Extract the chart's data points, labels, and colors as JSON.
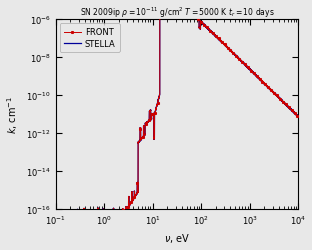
{
  "title": "SN 2009ip $\\rho = 10^{-11}$ g/cm$^2$ $T = 5000$ K $t_r = 10$ days",
  "xlabel": "$\\nu$, eV",
  "ylabel": "$k$, cm$^{-1}$",
  "xlim": [
    0.1,
    10000.0
  ],
  "ylim": [
    1e-16,
    1e-06
  ],
  "front_color": "#cc0000",
  "stella_color": "#000099",
  "front_label": "FRONT",
  "stella_label": "STELLA",
  "background_color": "#e8e8e8",
  "title_fontsize": 5.5,
  "label_fontsize": 7,
  "tick_fontsize": 6,
  "legend_fontsize": 6
}
